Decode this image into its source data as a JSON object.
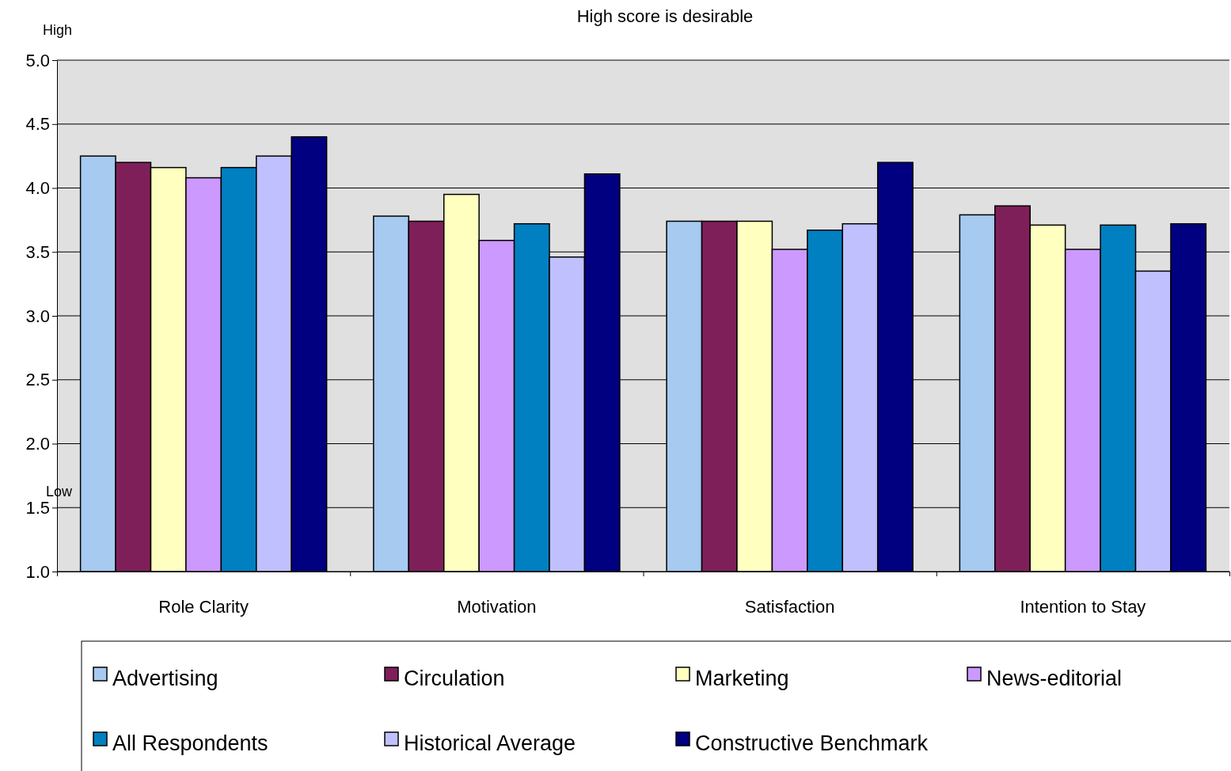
{
  "chart_data": {
    "type": "bar",
    "title": "High score is desirable",
    "categories": [
      "Role Clarity",
      "Motivation",
      "Satisfaction",
      "Intention to Stay"
    ],
    "series": [
      {
        "name": "Advertising",
        "color": "#a6caf0",
        "values": [
          4.25,
          3.78,
          3.74,
          3.79
        ]
      },
      {
        "name": "Circulation",
        "color": "#7f1f5a",
        "values": [
          4.2,
          3.74,
          3.74,
          3.86
        ]
      },
      {
        "name": "Marketing",
        "color": "#ffffc0",
        "values": [
          4.16,
          3.95,
          3.74,
          3.71
        ]
      },
      {
        "name": "News-editorial",
        "color": "#cc99ff",
        "values": [
          4.08,
          3.59,
          3.52,
          3.52
        ]
      },
      {
        "name": "All Respondents",
        "color": "#0080c0",
        "values": [
          4.16,
          3.72,
          3.67,
          3.71
        ]
      },
      {
        "name": "Historical Average",
        "color": "#c0c0ff",
        "values": [
          4.25,
          3.46,
          3.72,
          3.35
        ]
      },
      {
        "name": "Constructive Benchmark",
        "color": "#000080",
        "values": [
          4.4,
          4.11,
          4.2,
          3.72
        ]
      }
    ],
    "ylim": [
      1,
      5
    ],
    "yticks": [
      {
        "value": 1,
        "label": "1.0"
      },
      {
        "value": 1.5,
        "label": "1.5"
      },
      {
        "value": 2,
        "label": "2.0"
      },
      {
        "value": 2.5,
        "label": "2.5"
      },
      {
        "value": 3,
        "label": "3.0"
      },
      {
        "value": 3.5,
        "label": "3.5"
      },
      {
        "value": 4,
        "label": "4.0"
      },
      {
        "value": 4.5,
        "label": "4.5"
      },
      {
        "value": 5,
        "label": "5.0"
      }
    ],
    "annotations": [
      "High",
      "Low"
    ],
    "grid": "y",
    "legend": "bottom"
  }
}
